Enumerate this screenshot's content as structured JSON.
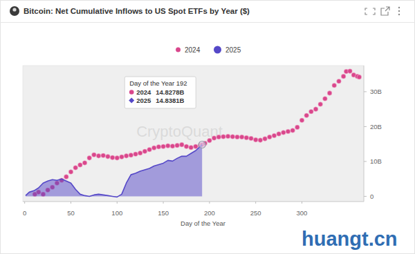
{
  "chart_data": {
    "type": "line",
    "title": "Bitcoin: Net Cumulative Inflows to US Spot ETFs by Year ($)",
    "x_label": "Day of the Year",
    "series": [
      {
        "name": "2024",
        "type": "scatter",
        "marker": "circle",
        "color": "#d9478c",
        "x": [
          11,
          15,
          20,
          25,
          30,
          35,
          40,
          45,
          50,
          55,
          60,
          65,
          70,
          75,
          80,
          85,
          90,
          95,
          100,
          105,
          110,
          115,
          120,
          125,
          130,
          135,
          140,
          145,
          150,
          155,
          160,
          165,
          170,
          175,
          180,
          185,
          190,
          192,
          195,
          200,
          205,
          210,
          215,
          220,
          225,
          230,
          235,
          240,
          245,
          250,
          255,
          260,
          265,
          270,
          275,
          280,
          285,
          290,
          295,
          300,
          305,
          310,
          315,
          320,
          325,
          330,
          335,
          340,
          345,
          348,
          352,
          356,
          360,
          362
        ],
        "values": [
          0.6,
          1.2,
          0.6,
          1.8,
          2.6,
          3.8,
          4.6,
          5.6,
          7.0,
          8.2,
          9.0,
          9.6,
          11.0,
          11.9,
          11.6,
          11.7,
          11.4,
          11.1,
          11.0,
          11.3,
          11.6,
          11.8,
          12.1,
          12.4,
          12.9,
          13.4,
          13.9,
          14.2,
          14.3,
          14.5,
          14.4,
          14.6,
          14.8,
          14.3,
          14.0,
          14.3,
          14.6,
          14.8278,
          15.2,
          16.0,
          16.7,
          17.0,
          17.1,
          17.2,
          17.1,
          17.0,
          17.0,
          16.8,
          16.6,
          16.2,
          16.1,
          16.5,
          17.0,
          17.4,
          17.9,
          18.3,
          18.6,
          18.9,
          19.8,
          21.8,
          23.2,
          24.3,
          25.0,
          26.4,
          28.0,
          29.6,
          31.8,
          33.0,
          34.4,
          35.8,
          35.9,
          34.8,
          34.4,
          34.2
        ]
      },
      {
        "name": "2025",
        "type": "area",
        "color": "#5548c8",
        "x": [
          1,
          5,
          10,
          15,
          20,
          25,
          30,
          35,
          40,
          45,
          50,
          55,
          60,
          65,
          70,
          75,
          80,
          85,
          90,
          95,
          100,
          105,
          110,
          115,
          120,
          125,
          130,
          135,
          140,
          145,
          150,
          155,
          160,
          165,
          170,
          175,
          180,
          185,
          190,
          192
        ],
        "values": [
          0.2,
          1.2,
          1.6,
          2.4,
          3.8,
          4.4,
          4.8,
          4.6,
          5.0,
          4.4,
          3.8,
          2.0,
          0.6,
          0.2,
          0.0,
          0.4,
          0.6,
          0.4,
          0.2,
          0.0,
          -0.2,
          0.6,
          3.8,
          6.2,
          6.6,
          7.2,
          7.6,
          8.0,
          8.7,
          9.1,
          9.5,
          10.3,
          10.1,
          10.9,
          11.5,
          11.5,
          12.3,
          13.1,
          14.3,
          14.8381
        ]
      }
    ],
    "xlim": [
      -2,
      367
    ],
    "xticks": [
      0,
      50,
      100,
      150,
      200,
      250,
      300
    ],
    "ylim": [
      -1.5,
      37.5
    ],
    "yticks": [
      0,
      {
        "value": 10,
        "label": "10B"
      },
      {
        "value": 20,
        "label": "20B"
      },
      {
        "value": 30,
        "label": "30B"
      }
    ],
    "grid": false,
    "legend": "top",
    "tooltip": {
      "title": "Day of the Year 192",
      "x": 192,
      "items": [
        {
          "series": "2024",
          "value": 14.8278,
          "label": "14.8278B",
          "marker": "circle"
        },
        {
          "series": "2025",
          "value": 14.8381,
          "label": "14.8381B",
          "marker": "diamond"
        }
      ]
    },
    "watermarks": [
      "CryptoQuant",
      "huangt.cn"
    ]
  }
}
